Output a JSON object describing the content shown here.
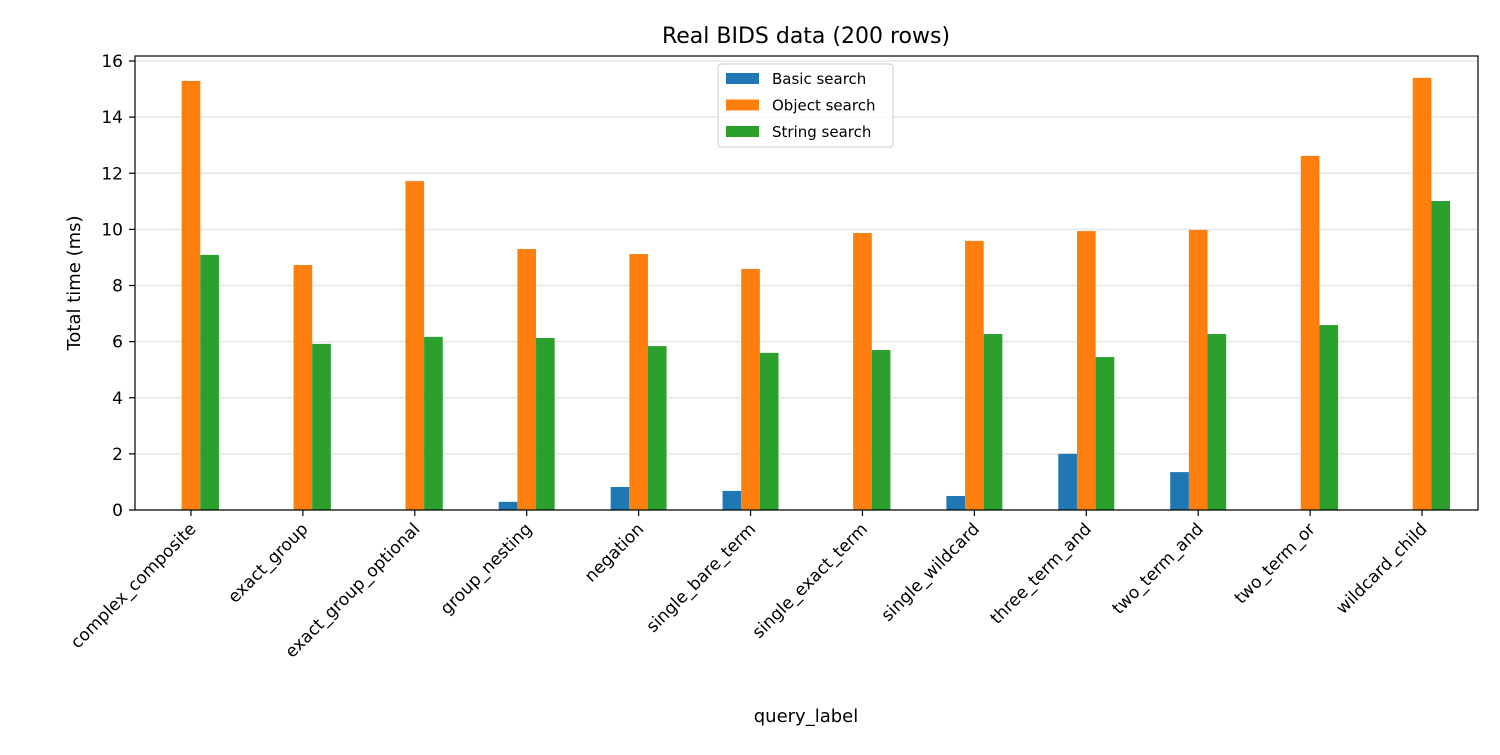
{
  "chart_data": {
    "type": "bar",
    "title": "Real BIDS data (200 rows)",
    "xlabel": "query_label",
    "ylabel": "Total time (ms)",
    "ylim": [
      0,
      16.2
    ],
    "yticks": [
      0,
      2,
      4,
      6,
      8,
      10,
      12,
      14,
      16
    ],
    "grid": "y-major",
    "legend_position": "top-center",
    "categories": [
      "complex_composite",
      "exact_group",
      "exact_group_optional",
      "group_nesting",
      "negation",
      "single_bare_term",
      "single_exact_term",
      "single_wildcard",
      "three_term_and",
      "two_term_and",
      "two_term_or",
      "wildcard_child"
    ],
    "series": [
      {
        "name": "Basic search",
        "color": "#1f77b4",
        "values": [
          0,
          0,
          0,
          0.29,
          0.82,
          0.68,
          0,
          0.5,
          2.0,
          1.35,
          0,
          0
        ]
      },
      {
        "name": "Object search",
        "color": "#ff7f0e",
        "values": [
          15.29,
          8.73,
          11.72,
          9.3,
          9.12,
          8.59,
          9.87,
          9.59,
          9.94,
          9.98,
          12.62,
          15.4
        ]
      },
      {
        "name": "String search",
        "color": "#2ca02c",
        "values": [
          9.09,
          5.92,
          6.17,
          6.13,
          5.84,
          5.6,
          5.7,
          6.27,
          5.45,
          6.27,
          6.59,
          11.01
        ]
      }
    ]
  }
}
